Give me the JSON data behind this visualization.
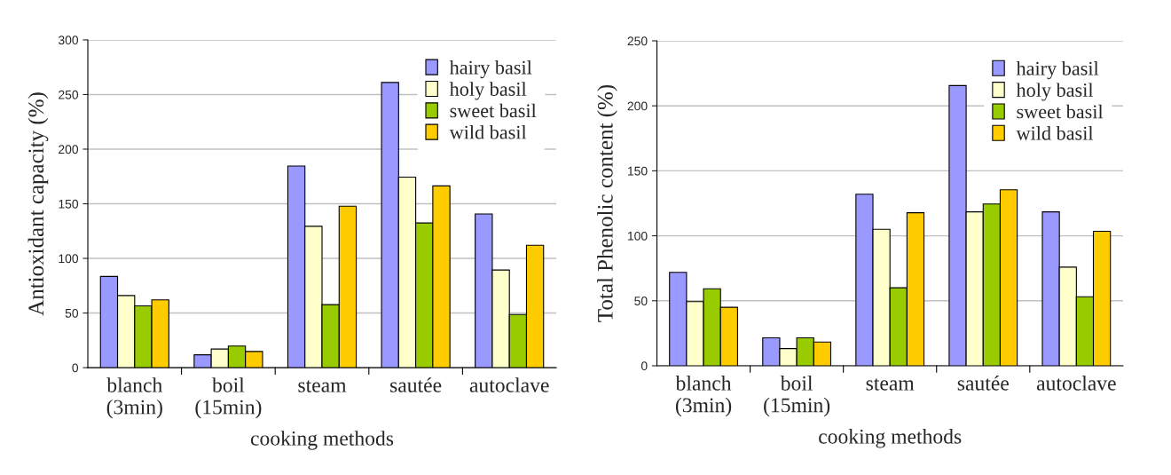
{
  "chart_data": [
    {
      "type": "bar",
      "xlabel": "cooking methods",
      "ylabel": "Antioxidant capacity (%)",
      "categories": [
        "blanch\n(3min)",
        "boil\n(15min)",
        "steam",
        "sautée",
        "autoclave"
      ],
      "ylim": [
        0,
        300
      ],
      "yticks": [
        0,
        50,
        100,
        150,
        200,
        250,
        300
      ],
      "grid": "y",
      "legend": "top right",
      "series": [
        {
          "name": "hairy basil",
          "color": "#9999ff",
          "values": [
            83.5,
            11.8,
            184.5,
            261,
            140.7
          ]
        },
        {
          "name": "holy basil",
          "color": "#ffffcc",
          "values": [
            66,
            17,
            129.4,
            174.4,
            89.4
          ]
        },
        {
          "name": "sweet basil",
          "color": "#99cc00",
          "values": [
            56.6,
            19.8,
            57.7,
            132.4,
            48.6
          ]
        },
        {
          "name": "wild basil",
          "color": "#ffcc00",
          "values": [
            62,
            14.8,
            147.8,
            166.4,
            112
          ]
        }
      ]
    },
    {
      "type": "bar",
      "xlabel": "cooking methods",
      "ylabel": "Total Phenolic content (%)",
      "categories": [
        "blanch\n(3min)",
        "boil\n(15min)",
        "steam",
        "sautée",
        "autoclave"
      ],
      "ylim": [
        0,
        250
      ],
      "yticks": [
        0,
        50,
        100,
        150,
        200,
        250
      ],
      "grid": "y",
      "legend": "top right",
      "series": [
        {
          "name": "hairy basil",
          "color": "#9999ff",
          "values": [
            71.9,
            21.5,
            132,
            215.6,
            118.4
          ]
        },
        {
          "name": "holy basil",
          "color": "#ffffcc",
          "values": [
            49.3,
            13.2,
            105,
            118.4,
            75.9
          ]
        },
        {
          "name": "sweet basil",
          "color": "#99cc00",
          "values": [
            59.2,
            21.5,
            60,
            124.5,
            53.1
          ]
        },
        {
          "name": "wild basil",
          "color": "#ffcc00",
          "values": [
            45,
            18.2,
            117.7,
            135.4,
            103.5
          ]
        }
      ]
    }
  ]
}
